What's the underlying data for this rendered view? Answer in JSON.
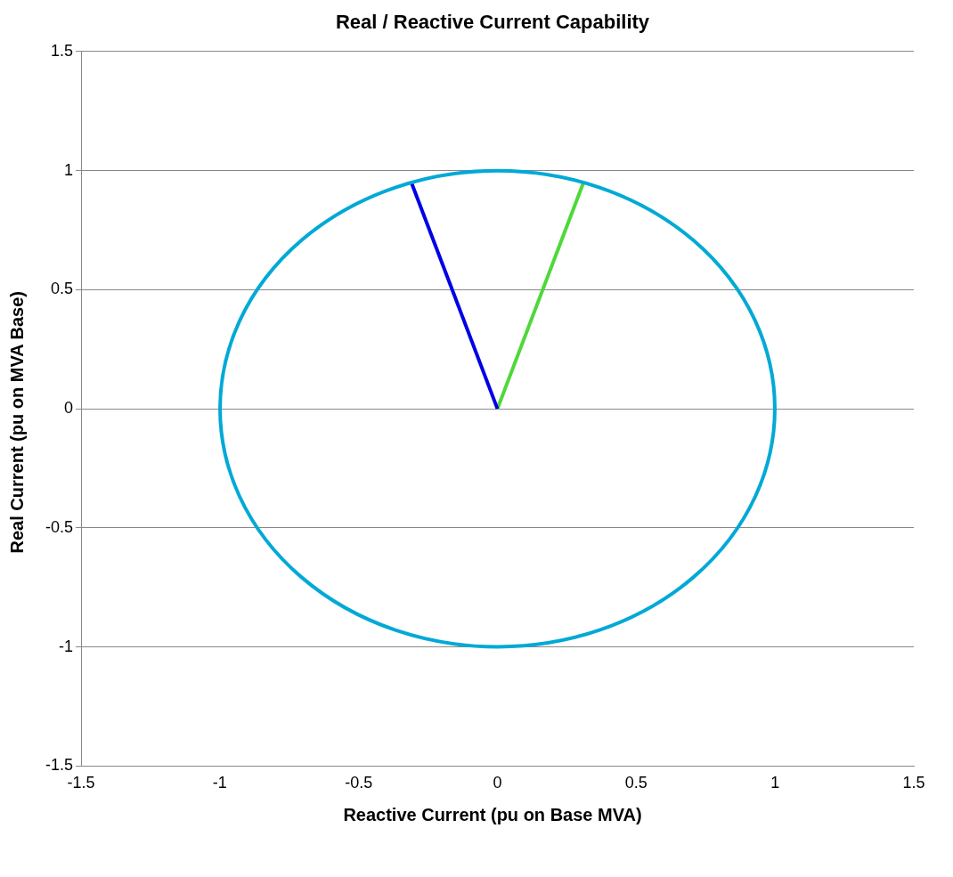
{
  "chart_data": {
    "type": "line",
    "title": "Real / Reactive Current Capability",
    "xlabel": "Reactive Current (pu on Base MVA)",
    "ylabel": "Real Current (pu on MVA Base)",
    "xlim": [
      -1.5,
      1.5
    ],
    "xticks": [
      -1.5,
      -1,
      -0.5,
      0,
      0.5,
      1,
      1.5
    ],
    "ylim": [
      -1.5,
      1.5
    ],
    "yticks": [
      -1.5,
      -1,
      -0.5,
      0,
      0.5,
      1,
      1.5
    ],
    "grid": "y",
    "legend": false,
    "marker": "none",
    "line_style": "solid",
    "series": [
      {
        "color": "#0000e6",
        "x": [
          0,
          -0.31
        ],
        "values": [
          0,
          0.95
        ]
      },
      {
        "color": "#4fd83a",
        "x": [
          0,
          0.31
        ],
        "values": [
          0,
          0.95
        ]
      }
    ]
  }
}
